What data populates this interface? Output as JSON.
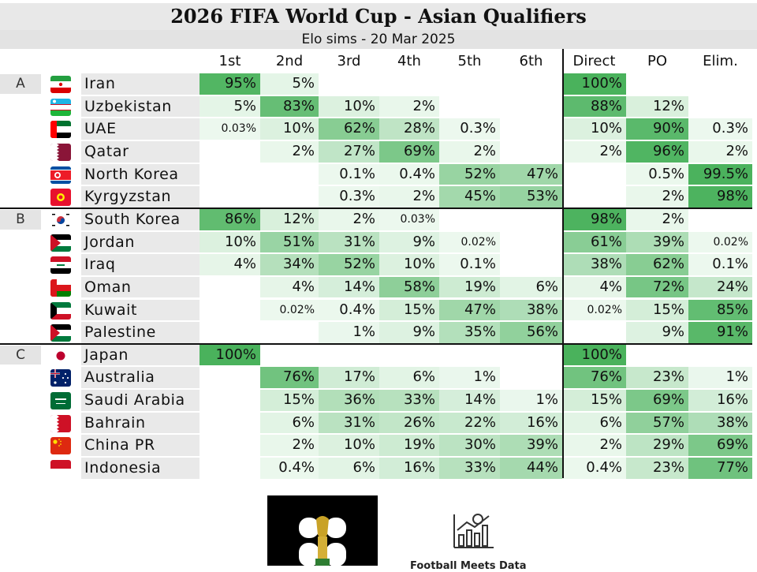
{
  "title": "2026 FIFA World Cup - Asian Qualifiers",
  "subtitle": "Elo sims - 20 Mar 2025",
  "columns": [
    "1st",
    "2nd",
    "3rd",
    "4th",
    "5th",
    "6th",
    "Direct",
    "PO",
    "Elim."
  ],
  "footer_brand": "Football Meets Data",
  "chart_data": {
    "type": "table",
    "title": "2026 FIFA World Cup - Asian Qualifiers",
    "subtitle": "Elo sims - 20 Mar 2025",
    "columns": [
      "1st",
      "2nd",
      "3rd",
      "4th",
      "5th",
      "6th",
      "Direct",
      "PO",
      "Elim."
    ],
    "groups": [
      {
        "name": "A",
        "teams": [
          {
            "team": "Iran",
            "flag": "iran-flag-icon",
            "values": [
              "95%",
              "5%",
              "",
              "",
              "",
              "",
              "100%",
              "",
              ""
            ]
          },
          {
            "team": "Uzbekistan",
            "flag": "uzbekistan-flag-icon",
            "values": [
              "5%",
              "83%",
              "10%",
              "2%",
              "",
              "",
              "88%",
              "12%",
              ""
            ]
          },
          {
            "team": "UAE",
            "flag": "uae-flag-icon",
            "values": [
              "0.03%",
              "10%",
              "62%",
              "28%",
              "0.3%",
              "",
              "10%",
              "90%",
              "0.3%"
            ]
          },
          {
            "team": "Qatar",
            "flag": "qatar-flag-icon",
            "values": [
              "",
              "2%",
              "27%",
              "69%",
              "2%",
              "",
              "2%",
              "96%",
              "2%"
            ]
          },
          {
            "team": "North Korea",
            "flag": "north-korea-flag-icon",
            "values": [
              "",
              "",
              "0.1%",
              "0.4%",
              "52%",
              "47%",
              "",
              "0.5%",
              "99.5%"
            ]
          },
          {
            "team": "Kyrgyzstan",
            "flag": "kyrgyzstan-flag-icon",
            "values": [
              "",
              "",
              "0.3%",
              "2%",
              "45%",
              "53%",
              "",
              "2%",
              "98%"
            ]
          }
        ]
      },
      {
        "name": "B",
        "teams": [
          {
            "team": "South Korea",
            "flag": "south-korea-flag-icon",
            "values": [
              "86%",
              "12%",
              "2%",
              "0.03%",
              "",
              "",
              "98%",
              "2%",
              ""
            ]
          },
          {
            "team": "Jordan",
            "flag": "jordan-flag-icon",
            "values": [
              "10%",
              "51%",
              "31%",
              "9%",
              "0.02%",
              "",
              "61%",
              "39%",
              "0.02%"
            ]
          },
          {
            "team": "Iraq",
            "flag": "iraq-flag-icon",
            "values": [
              "4%",
              "34%",
              "52%",
              "10%",
              "0.1%",
              "",
              "38%",
              "62%",
              "0.1%"
            ]
          },
          {
            "team": "Oman",
            "flag": "oman-flag-icon",
            "values": [
              "",
              "4%",
              "14%",
              "58%",
              "19%",
              "6%",
              "4%",
              "72%",
              "24%"
            ]
          },
          {
            "team": "Kuwait",
            "flag": "kuwait-flag-icon",
            "values": [
              "",
              "0.02%",
              "0.4%",
              "15%",
              "47%",
              "38%",
              "0.02%",
              "15%",
              "85%"
            ]
          },
          {
            "team": "Palestine",
            "flag": "palestine-flag-icon",
            "values": [
              "",
              "",
              "1%",
              "9%",
              "35%",
              "56%",
              "",
              "9%",
              "91%"
            ]
          }
        ]
      },
      {
        "name": "C",
        "teams": [
          {
            "team": "Japan",
            "flag": "japan-flag-icon",
            "values": [
              "100%",
              "",
              "",
              "",
              "",
              "",
              "100%",
              "",
              ""
            ]
          },
          {
            "team": "Australia",
            "flag": "australia-flag-icon",
            "values": [
              "",
              "76%",
              "17%",
              "6%",
              "1%",
              "",
              "76%",
              "23%",
              "1%"
            ]
          },
          {
            "team": "Saudi Arabia",
            "flag": "saudi-arabia-flag-icon",
            "values": [
              "",
              "15%",
              "36%",
              "33%",
              "14%",
              "1%",
              "15%",
              "69%",
              "16%"
            ]
          },
          {
            "team": "Bahrain",
            "flag": "bahrain-flag-icon",
            "values": [
              "",
              "6%",
              "31%",
              "26%",
              "22%",
              "16%",
              "6%",
              "57%",
              "38%"
            ]
          },
          {
            "team": "China PR",
            "flag": "china-flag-icon",
            "values": [
              "",
              "2%",
              "10%",
              "19%",
              "30%",
              "39%",
              "2%",
              "29%",
              "69%"
            ]
          },
          {
            "team": "Indonesia",
            "flag": "indonesia-flag-icon",
            "values": [
              "",
              "0.4%",
              "6%",
              "16%",
              "33%",
              "44%",
              "0.4%",
              "23%",
              "77%"
            ]
          }
        ]
      }
    ]
  }
}
